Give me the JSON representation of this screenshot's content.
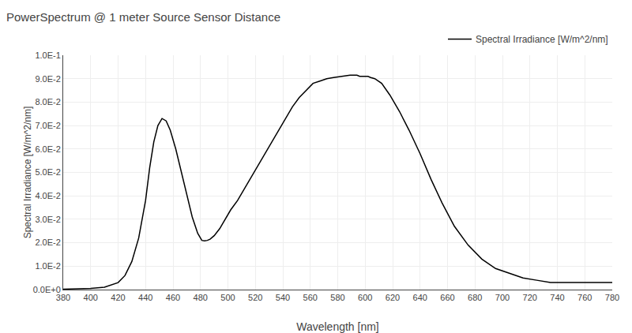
{
  "chart_data": {
    "type": "line",
    "title": "PowerSpectrum @ 1 meter Source Sensor Distance",
    "xlabel": "Wavelength [nm]",
    "ylabel": "Spectral Irradiance [W/m^2/nm]",
    "x": [
      380,
      390,
      400,
      410,
      420,
      425,
      430,
      435,
      440,
      443,
      446,
      449,
      452,
      455,
      458,
      462,
      466,
      470,
      474,
      478,
      481,
      483,
      485,
      487,
      490,
      494,
      498,
      502,
      507,
      512,
      517,
      522,
      527,
      532,
      537,
      542,
      547,
      552,
      557,
      562,
      567,
      572,
      577,
      582,
      586,
      589,
      592,
      594,
      596,
      598,
      600,
      602,
      604,
      607,
      612,
      618,
      625,
      632,
      640,
      648,
      656,
      665,
      675,
      685,
      695,
      705,
      715,
      725,
      735,
      745,
      755,
      765,
      775,
      780
    ],
    "series": [
      {
        "name": "Spectral Irradiance [W/m^2/nm]",
        "color": "#000000",
        "values": [
          0.0002,
          0.0003,
          0.0005,
          0.001,
          0.003,
          0.006,
          0.012,
          0.022,
          0.038,
          0.052,
          0.063,
          0.07,
          0.073,
          0.072,
          0.068,
          0.06,
          0.05,
          0.04,
          0.031,
          0.024,
          0.021,
          0.0208,
          0.021,
          0.0215,
          0.023,
          0.026,
          0.03,
          0.034,
          0.038,
          0.043,
          0.048,
          0.053,
          0.058,
          0.063,
          0.068,
          0.073,
          0.078,
          0.082,
          0.085,
          0.088,
          0.089,
          0.09,
          0.0905,
          0.091,
          0.0912,
          0.0915,
          0.0915,
          0.0915,
          0.091,
          0.091,
          0.091,
          0.091,
          0.0905,
          0.09,
          0.088,
          0.083,
          0.076,
          0.068,
          0.058,
          0.047,
          0.037,
          0.027,
          0.019,
          0.013,
          0.009,
          0.007,
          0.005,
          0.004,
          0.003,
          0.003,
          0.003,
          0.003,
          0.003,
          0.003
        ]
      }
    ],
    "xlim": [
      380,
      780
    ],
    "xticks": [
      380,
      400,
      420,
      440,
      460,
      480,
      500,
      520,
      540,
      560,
      580,
      600,
      620,
      640,
      660,
      680,
      700,
      720,
      740,
      760,
      780
    ],
    "ylim": [
      0.0,
      0.1
    ],
    "yticks": [
      {
        "value": 0.0,
        "label": "0.0E+0"
      },
      {
        "value": 0.01,
        "label": "1.0E-2"
      },
      {
        "value": 0.02,
        "label": "2.0E-2"
      },
      {
        "value": 0.03,
        "label": "3.0E-2"
      },
      {
        "value": 0.04,
        "label": "4.0E-2"
      },
      {
        "value": 0.05,
        "label": "5.0E-2"
      },
      {
        "value": 0.06,
        "label": "6.0E-2"
      },
      {
        "value": 0.07,
        "label": "7.0E-2"
      },
      {
        "value": 0.08,
        "label": "8.0E-2"
      },
      {
        "value": 0.09,
        "label": "9.0E-2"
      },
      {
        "value": 0.1,
        "label": "1.0E-1"
      }
    ],
    "grid": true,
    "legend": "upper right"
  }
}
